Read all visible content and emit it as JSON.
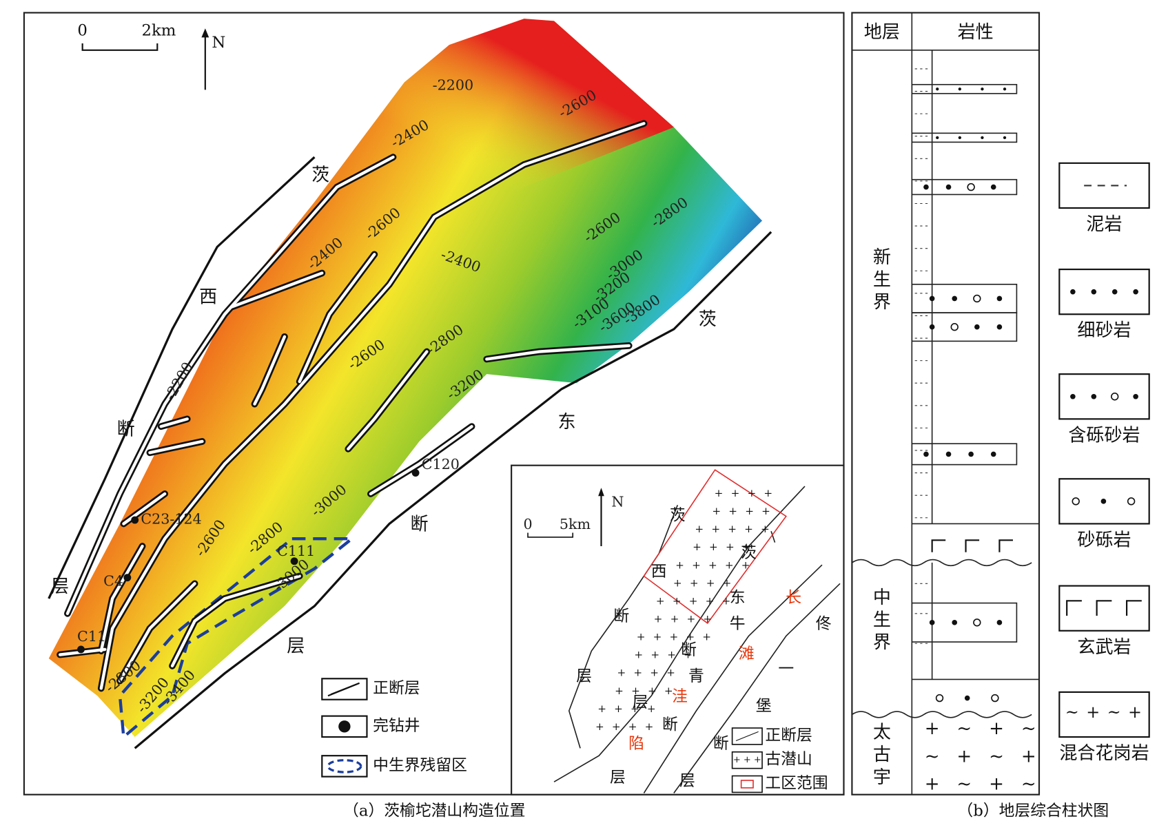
{
  "panel_a": {
    "caption": "（a）茨榆坨潜山构造位置",
    "scale_bar": [
      "0",
      "2km"
    ],
    "north": "N",
    "fault_labels": [
      "茨",
      "西",
      "断",
      "层",
      "茨",
      "东",
      "断",
      "层"
    ],
    "contour_labels": [
      "-2200",
      "-2400",
      "-2600",
      "-2400",
      "-2600",
      "-2400",
      "-2600",
      "-2800",
      "-3000",
      "-3200",
      "-3100",
      "-3600",
      "-3800",
      "-2600",
      "-2800",
      "-3200",
      "-2200",
      "-3000",
      "-2800",
      "-2600",
      "-3000",
      "-2800",
      "-3200",
      "-3400"
    ],
    "wells": [
      "C120",
      "C23-124",
      "C111",
      "C4",
      "C11"
    ],
    "legend": [
      "正断层",
      "完钻井",
      "中生界残留区"
    ],
    "inset": {
      "scale_bar": [
        "0",
        "5km"
      ],
      "north": "N",
      "labels": [
        "茨",
        "西",
        "断",
        "层",
        "茨",
        "东",
        "牛",
        "断",
        "青",
        "层",
        "断",
        "层",
        "佟",
        "一",
        "堡",
        "断",
        "层"
      ],
      "red_labels": [
        "长",
        "滩",
        "洼",
        "陷"
      ],
      "legend": [
        "正断层",
        "古潜山",
        "工区范围"
      ]
    }
  },
  "panel_b": {
    "caption": "（b）地层综合柱状图",
    "headers": [
      "地层",
      "岩性"
    ],
    "strata": [
      "新生界",
      "中生界",
      "太古宇"
    ],
    "legend": [
      "泥岩",
      "细砂岩",
      "含砾砂岩",
      "砂砾岩",
      "玄武岩",
      "混合花岗岩"
    ]
  }
}
